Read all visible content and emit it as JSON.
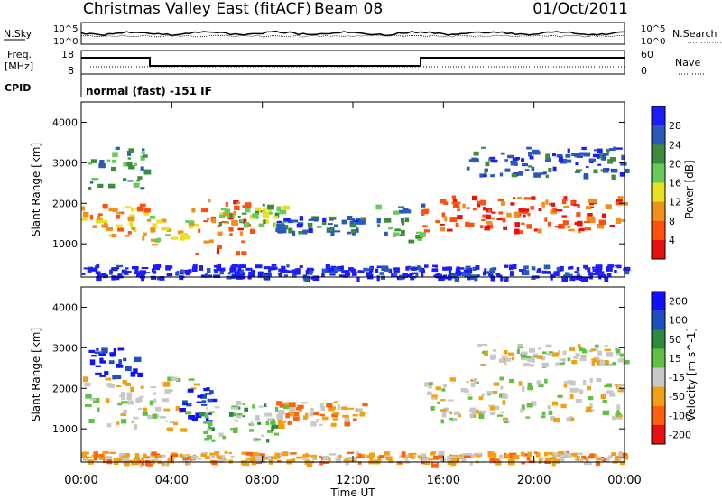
{
  "header": {
    "station": "Christmas Valley East (fitACF)",
    "beam": "Beam 08",
    "date": "01/Oct/2011"
  },
  "param_panel": {
    "nsky_label": "N.Sky",
    "nsearch_label": "N.Search",
    "freq_label": "Freq.",
    "freq_unit": "[MHz]",
    "nave_label": "Nave",
    "cpid_label": "CPID",
    "noise_ticks_left": [
      "10^5",
      "10^0"
    ],
    "noise_ticks_right": [
      "10^5",
      "10^0"
    ],
    "freq_ticks": [
      "18",
      "8"
    ],
    "nave_ticks": [
      "60",
      "0"
    ],
    "cpid_text": "normal (fast) -151 IF"
  },
  "chart_data": [
    {
      "type": "heatmap",
      "panel": "power",
      "xlabel": "",
      "ylabel": "Slant Range [km]",
      "yticks": [
        "1000",
        "2000",
        "3000",
        "4000"
      ],
      "ylim": [
        180,
        4500
      ],
      "colorbar_label": "Power [dB]",
      "colorbar_ticks": [
        "4",
        "8",
        "12",
        "16",
        "20",
        "24",
        "28"
      ],
      "colors": [
        "#1c1cff",
        "#2a5ab8",
        "#3c8c3c",
        "#66cc55",
        "#e8e020",
        "#f09018",
        "#ff5010",
        "#e81010"
      ],
      "bands": [
        {
          "t0": 0.0,
          "t1": 3.0,
          "r0": 1100,
          "r1": 2000,
          "level": 5
        },
        {
          "t0": 0.3,
          "t1": 2.8,
          "r0": 2400,
          "r1": 3400,
          "level": 2
        },
        {
          "t0": 3.0,
          "t1": 5.0,
          "r0": 1000,
          "r1": 1700,
          "level": 4
        },
        {
          "t0": 4.8,
          "t1": 7.5,
          "r0": 700,
          "r1": 2100,
          "level": 6
        },
        {
          "t0": 6.0,
          "t1": 9.0,
          "r0": 1500,
          "r1": 2000,
          "level": 3
        },
        {
          "t0": 8.5,
          "t1": 12.5,
          "r0": 1300,
          "r1": 1700,
          "level": 1
        },
        {
          "t0": 13.0,
          "t1": 15.0,
          "r0": 1100,
          "r1": 2000,
          "level": 2
        },
        {
          "t0": 15.0,
          "t1": 24.0,
          "r0": 1300,
          "r1": 2200,
          "level": 6
        },
        {
          "t0": 17.0,
          "t1": 24.0,
          "r0": 2700,
          "r1": 3400,
          "level": 1
        },
        {
          "t0": 0.0,
          "t1": 24.0,
          "r0": 180,
          "r1": 500,
          "level": 0
        }
      ]
    },
    {
      "type": "heatmap",
      "panel": "velocity",
      "xlabel": "Time UT",
      "ylabel": "Slant Range [km]",
      "xticks": [
        "00:00",
        "04:00",
        "08:00",
        "12:00",
        "16:00",
        "20:00",
        "00:00"
      ],
      "xlim": [
        0,
        24
      ],
      "yticks": [
        "1000",
        "2000",
        "3000",
        "4000"
      ],
      "ylim": [
        180,
        4500
      ],
      "colorbar_label": "Velocity [m s^-1]",
      "colorbar_ticks": [
        "200",
        "100",
        "50",
        "15",
        "-15",
        "-50",
        "-100",
        "-200"
      ],
      "colors": [
        "#1010ff",
        "#2050c0",
        "#2a8a40",
        "#60c040",
        "#c8c8c8",
        "#f0a010",
        "#ff6010",
        "#e81010"
      ],
      "bands": [
        {
          "t0": 0.0,
          "t1": 3.0,
          "r0": 1100,
          "r1": 2300,
          "level": 4
        },
        {
          "t0": 0.3,
          "t1": 2.5,
          "r0": 2300,
          "r1": 3000,
          "level": 0
        },
        {
          "t0": 3.0,
          "t1": 5.0,
          "r0": 1000,
          "r1": 2300,
          "level": 4
        },
        {
          "t0": 4.3,
          "t1": 6.0,
          "r0": 1200,
          "r1": 2100,
          "level": 0
        },
        {
          "t0": 5.0,
          "t1": 9.0,
          "r0": 700,
          "r1": 1700,
          "level": 3
        },
        {
          "t0": 8.5,
          "t1": 12.5,
          "r0": 1100,
          "r1": 1700,
          "level": 5
        },
        {
          "t0": 15.0,
          "t1": 24.0,
          "r0": 1200,
          "r1": 2300,
          "level": 4
        },
        {
          "t0": 17.5,
          "t1": 24.0,
          "r0": 2600,
          "r1": 3100,
          "level": 4
        },
        {
          "t0": 0.0,
          "t1": 24.0,
          "r0": 180,
          "r1": 450,
          "level": 5
        }
      ]
    }
  ]
}
